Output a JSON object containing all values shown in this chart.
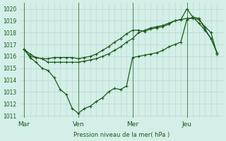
{
  "bg_color": "#d4eee8",
  "line_color": "#1a5c1a",
  "grid_color": "#b8d8d0",
  "ylabel": "Pression niveau de la mer( hPa )",
  "ylim": [
    1010.8,
    1020.5
  ],
  "yticks": [
    1011,
    1012,
    1013,
    1014,
    1015,
    1016,
    1017,
    1018,
    1019,
    1020
  ],
  "xtick_labels": [
    "Mar",
    "Ven",
    "Mer",
    "Jeu"
  ],
  "xtick_positions": [
    0,
    27,
    54,
    81
  ],
  "vline_positions": [
    0,
    27,
    54,
    81
  ],
  "series1_x": [
    0,
    3,
    6,
    9,
    12,
    15,
    18,
    21,
    24,
    27,
    30,
    33,
    36,
    39,
    42,
    45,
    48,
    51,
    54,
    57,
    60,
    63,
    66,
    69,
    72,
    75,
    78,
    81,
    84,
    87,
    90,
    93,
    96
  ],
  "series1_y": [
    1016.6,
    1016.0,
    1015.9,
    1015.8,
    1015.8,
    1015.9,
    1015.9,
    1015.9,
    1015.9,
    1015.8,
    1015.9,
    1016.0,
    1016.2,
    1016.5,
    1016.8,
    1017.2,
    1017.5,
    1017.9,
    1018.2,
    1018.2,
    1018.1,
    1018.3,
    1018.4,
    1018.5,
    1018.7,
    1019.0,
    1019.1,
    1019.2,
    1019.2,
    1019.1,
    1018.5,
    1018.0,
    1016.2
  ],
  "series2_x": [
    0,
    3,
    6,
    9,
    12,
    15,
    18,
    21,
    24,
    27,
    30,
    33,
    36,
    39,
    42,
    45,
    48,
    51,
    54,
    57,
    60,
    63,
    66,
    69,
    72,
    75,
    78,
    81,
    84,
    87,
    90,
    93,
    96
  ],
  "series2_y": [
    1016.6,
    1015.9,
    1015.5,
    1015.0,
    1014.8,
    1014.2,
    1013.2,
    1012.8,
    1011.6,
    1011.2,
    1011.6,
    1011.8,
    1012.2,
    1012.5,
    1013.0,
    1013.3,
    1013.2,
    1013.5,
    1015.9,
    1016.0,
    1016.1,
    1016.2,
    1016.3,
    1016.5,
    1016.8,
    1017.0,
    1017.2,
    1019.1,
    1019.3,
    1019.2,
    1018.3,
    1017.5,
    1016.3
  ],
  "series3_x": [
    0,
    3,
    6,
    9,
    12,
    15,
    18,
    21,
    24,
    27,
    30,
    33,
    36,
    39,
    42,
    45,
    48,
    51,
    54,
    57,
    60,
    63,
    66,
    69,
    72,
    75,
    78,
    81,
    84,
    87,
    90,
    93,
    96
  ],
  "series3_y": [
    1016.6,
    1016.2,
    1015.9,
    1015.8,
    1015.5,
    1015.5,
    1015.5,
    1015.5,
    1015.5,
    1015.5,
    1015.6,
    1015.7,
    1015.8,
    1016.0,
    1016.2,
    1016.5,
    1016.8,
    1017.2,
    1017.5,
    1018.0,
    1018.2,
    1018.4,
    1018.5,
    1018.6,
    1018.8,
    1019.0,
    1019.1,
    1020.0,
    1019.3,
    1018.8,
    1018.2,
    1017.5,
    1016.3
  ],
  "figsize": [
    3.2,
    2.0
  ],
  "dpi": 100
}
